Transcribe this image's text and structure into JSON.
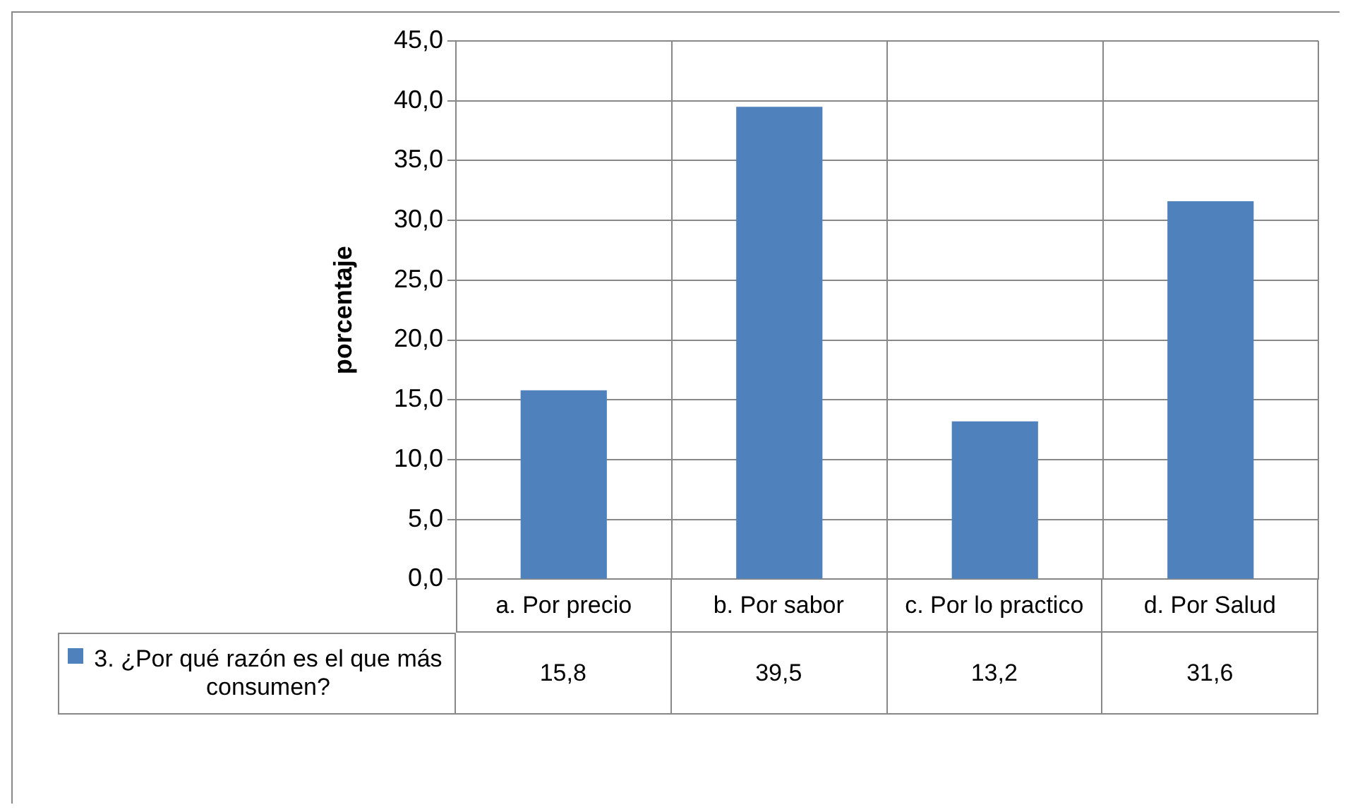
{
  "chart_data": {
    "type": "bar",
    "ylabel": "porcentaje",
    "categories": [
      "a. Por precio",
      "b. Por sabor",
      "c. Por lo practico",
      "d. Por Salud"
    ],
    "series": [
      {
        "name": "3. ¿Por qué razón es el que más consumen?",
        "color": "#4f81bd",
        "values": [
          15.8,
          39.5,
          13.2,
          31.6
        ],
        "value_labels": [
          "15,8",
          "39,5",
          "13,2",
          "31,6"
        ]
      }
    ],
    "ylim": [
      0,
      45
    ],
    "yticks": [
      {
        "value": 0,
        "label": "0,0"
      },
      {
        "value": 5,
        "label": "5,0"
      },
      {
        "value": 10,
        "label": "10,0"
      },
      {
        "value": 15,
        "label": "15,0"
      },
      {
        "value": 20,
        "label": "20,0"
      },
      {
        "value": 25,
        "label": "25,0"
      },
      {
        "value": 30,
        "label": "30,0"
      },
      {
        "value": 35,
        "label": "35,0"
      },
      {
        "value": 40,
        "label": "40,0"
      },
      {
        "value": 45,
        "label": "45,0"
      }
    ],
    "grid": true,
    "legend": "bottom"
  }
}
